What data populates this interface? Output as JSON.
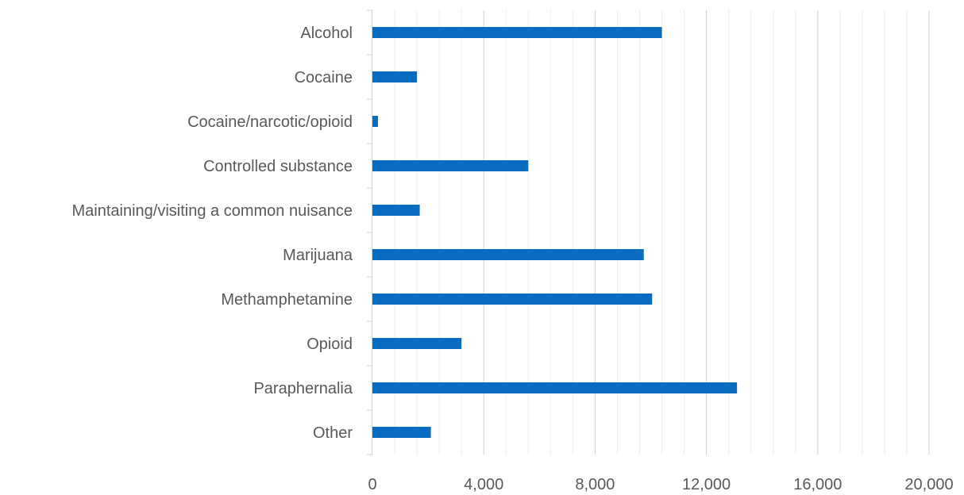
{
  "chart_data": {
    "type": "bar",
    "orientation": "horizontal",
    "categories": [
      "Alcohol",
      "Cocaine",
      "Cocaine/narcotic/opioid",
      "Controlled substance",
      "Maintaining/visiting a common nuisance",
      "Marijuana",
      "Methamphetamine",
      "Opioid",
      "Paraphernalia",
      "Other"
    ],
    "values": [
      10400,
      1600,
      200,
      5600,
      1700,
      9750,
      10050,
      3200,
      13100,
      2100
    ],
    "xlim": [
      0,
      20000
    ],
    "x_ticks": [
      0,
      4000,
      8000,
      12000,
      16000,
      20000
    ],
    "x_tick_labels": [
      "0",
      "4,000",
      "8,000",
      "12,000",
      "16,000",
      "20,000"
    ],
    "minor_step": 800,
    "bar_color": "#0a6cc0",
    "grid": true,
    "legend": "none",
    "title": "",
    "xlabel": "",
    "ylabel": ""
  }
}
